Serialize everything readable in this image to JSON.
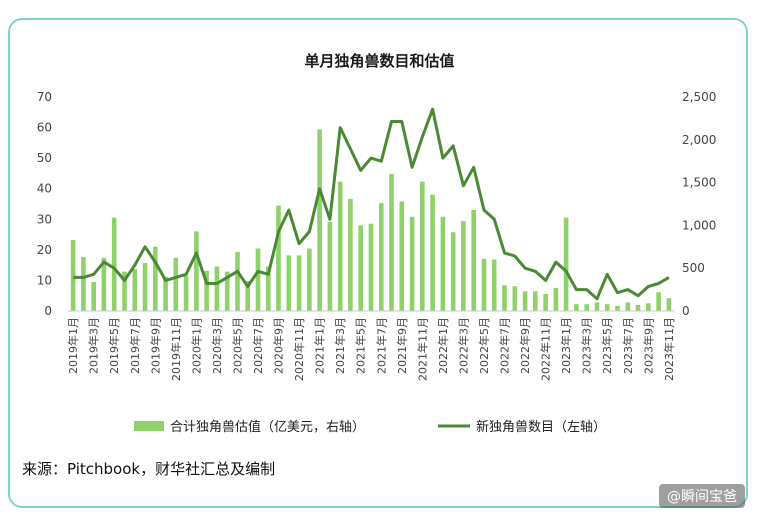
{
  "chart_data": {
    "type": "bar+line",
    "title": "单月独角兽数目和估值",
    "categories": [
      "2019年1月",
      "2019年2月",
      "2019年3月",
      "2019年4月",
      "2019年5月",
      "2019年6月",
      "2019年7月",
      "2019年8月",
      "2019年9月",
      "2019年10月",
      "2019年11月",
      "2019年12月",
      "2020年1月",
      "2020年2月",
      "2020年3月",
      "2020年4月",
      "2020年5月",
      "2020年6月",
      "2020年7月",
      "2020年8月",
      "2020年9月",
      "2020年10月",
      "2020年11月",
      "2020年12月",
      "2021年1月",
      "2021年2月",
      "2021年3月",
      "2021年4月",
      "2021年5月",
      "2021年6月",
      "2021年7月",
      "2021年8月",
      "2021年9月",
      "2021年10月",
      "2021年11月",
      "2021年12月",
      "2022年1月",
      "2022年2月",
      "2022年3月",
      "2022年4月",
      "2022年5月",
      "2022年6月",
      "2022年7月",
      "2022年8月",
      "2022年9月",
      "2022年10月",
      "2022年11月",
      "2022年12月",
      "2023年1月",
      "2023年2月",
      "2023年3月",
      "2023年4月",
      "2023年5月",
      "2023年6月",
      "2023年7月",
      "2023年8月",
      "2023年9月",
      "2023年10月",
      "2023年11月"
    ],
    "tick_labels": [
      "2019年1月",
      "2019年3月",
      "2019年5月",
      "2019年7月",
      "2019年9月",
      "2019年11月",
      "2020年1月",
      "2020年3月",
      "2020年5月",
      "2020年7月",
      "2020年9月",
      "2020年11月",
      "2021年1月",
      "2021年3月",
      "2021年5月",
      "2021年7月",
      "2021年9月",
      "2021年11月",
      "2022年1月",
      "2022年3月",
      "2022年5月",
      "2022年7月",
      "2022年9月",
      "2022年11月",
      "2023年1月",
      "2023年3月",
      "2023年5月",
      "2023年7月",
      "2023年9月",
      "2023年11月"
    ],
    "left_axis": {
      "ylim": [
        0,
        70
      ],
      "ticks": [
        "0",
        "10",
        "20",
        "30",
        "40",
        "50",
        "60",
        "70"
      ]
    },
    "right_axis": {
      "ylim": [
        0,
        2500
      ],
      "ticks": [
        "0",
        "500",
        "1,000",
        "1,500",
        "2,000",
        "2,500"
      ]
    },
    "series": [
      {
        "name": "合计独角兽估值（亿美元，右轴）",
        "type": "bar",
        "axis": "right",
        "color": "#8fd16a",
        "values": [
          830,
          630,
          340,
          620,
          1090,
          460,
          490,
          560,
          750,
          400,
          620,
          410,
          930,
          470,
          520,
          460,
          690,
          350,
          730,
          520,
          1230,
          650,
          650,
          730,
          2120,
          1040,
          1510,
          1310,
          1000,
          1020,
          1260,
          1600,
          1280,
          1100,
          1510,
          1360,
          1100,
          920,
          1050,
          1180,
          610,
          600,
          300,
          290,
          230,
          230,
          200,
          270,
          1090,
          80,
          80,
          100,
          80,
          60,
          100,
          70,
          90,
          220,
          150
        ]
      },
      {
        "name": "新独角兽数目（左轴）",
        "type": "line",
        "axis": "left",
        "color": "#4a8a34",
        "values": [
          11,
          11,
          12,
          16,
          14,
          10,
          15,
          21,
          16,
          10,
          11,
          12,
          19,
          9,
          9,
          11,
          13,
          8,
          13,
          12,
          26,
          33,
          22,
          26,
          40,
          30,
          60,
          53,
          46,
          50,
          49,
          62,
          62,
          47,
          57,
          66,
          50,
          54,
          41,
          47,
          33,
          30,
          19,
          18,
          14,
          13,
          10,
          16,
          13,
          7,
          7,
          4,
          12,
          6,
          7,
          5,
          8,
          9,
          11
        ]
      }
    ],
    "legend_position": "bottom",
    "grid": false
  },
  "source_text": "来源：Pitchbook，财华社汇总及编制",
  "watermark_text": "@瞬间宝爸"
}
